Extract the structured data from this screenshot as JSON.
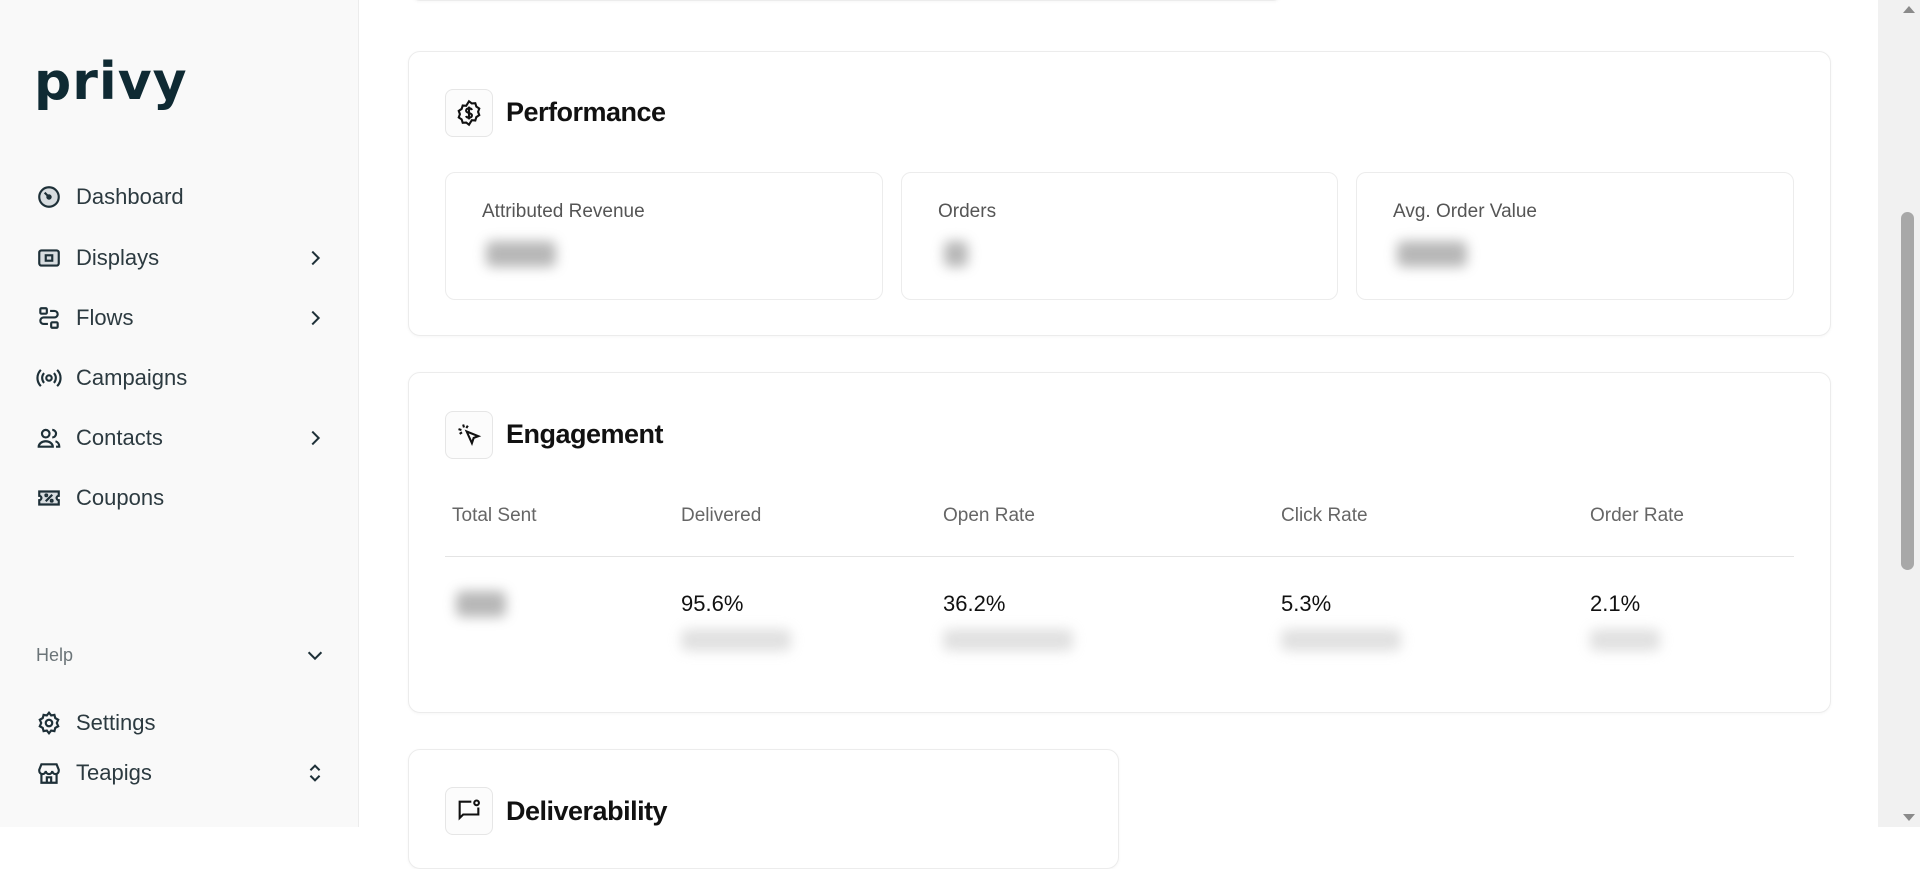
{
  "sidebar": {
    "logo": "privy",
    "items": [
      {
        "label": "Dashboard",
        "icon": "gauge-icon",
        "has_submenu": false
      },
      {
        "label": "Displays",
        "icon": "display-icon",
        "has_submenu": true
      },
      {
        "label": "Flows",
        "icon": "flows-icon",
        "has_submenu": true
      },
      {
        "label": "Campaigns",
        "icon": "broadcast-icon",
        "has_submenu": false
      },
      {
        "label": "Contacts",
        "icon": "users-icon",
        "has_submenu": true
      },
      {
        "label": "Coupons",
        "icon": "ticket-icon",
        "has_submenu": false
      }
    ],
    "help_label": "Help",
    "settings_label": "Settings",
    "store_label": "Teapigs"
  },
  "performance": {
    "title": "Performance",
    "icon": "dollar-badge-icon",
    "metrics": [
      {
        "label": "Attributed Revenue"
      },
      {
        "label": "Orders"
      },
      {
        "label": "Avg. Order Value"
      }
    ]
  },
  "engagement": {
    "title": "Engagement",
    "icon": "cursor-click-icon",
    "columns": [
      "Total Sent",
      "Delivered",
      "Open Rate",
      "Click Rate",
      "Order Rate"
    ],
    "values": [
      "",
      "95.6%",
      "36.2%",
      "5.3%",
      "2.1%"
    ]
  },
  "deliverability": {
    "title": "Deliverability",
    "icon": "message-alert-icon"
  }
}
